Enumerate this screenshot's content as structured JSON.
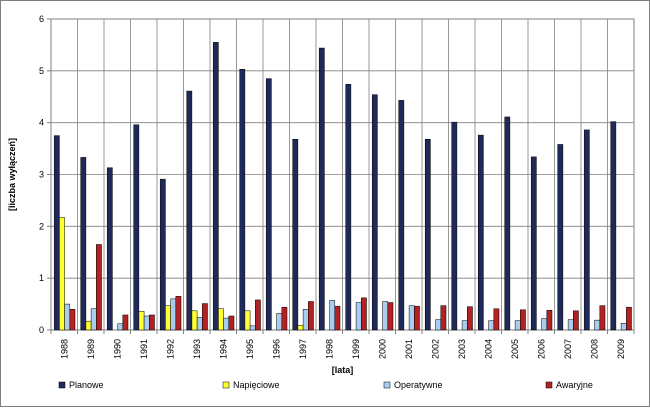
{
  "chart_data": {
    "type": "bar",
    "title": "",
    "xlabel": "[lata]",
    "ylabel": "[liczba wyłączeń]",
    "ylim": [
      0,
      6
    ],
    "yticks": [
      0,
      1,
      2,
      3,
      4,
      5,
      6
    ],
    "grid": true,
    "legend_position": "bottom",
    "categories": [
      "1988",
      "1989",
      "1990",
      "1991",
      "1992",
      "1993",
      "1994",
      "1995",
      "1996",
      "1997",
      "1998",
      "1999",
      "2000",
      "2001",
      "2002",
      "2003",
      "2004",
      "2005",
      "2006",
      "2007",
      "2008",
      "2009"
    ],
    "series": [
      {
        "name": "Planowe",
        "color": "#1f2a5a",
        "values": [
          3.75,
          3.33,
          3.13,
          3.96,
          2.91,
          4.61,
          5.55,
          5.03,
          4.85,
          3.68,
          5.44,
          4.74,
          4.54,
          4.43,
          3.68,
          4.01,
          3.76,
          4.11,
          3.34,
          3.58,
          3.86,
          4.02
        ]
      },
      {
        "name": "Napięciowe",
        "color": "#ffff33",
        "values": [
          2.17,
          0.17,
          0.0,
          0.36,
          0.47,
          0.37,
          0.41,
          0.37,
          0.0,
          0.09,
          0.0,
          0.0,
          0.0,
          0.0,
          0.0,
          0.0,
          0.0,
          0.0,
          0.0,
          0.0,
          0.0,
          0.0
        ]
      },
      {
        "name": "Operatywne",
        "color": "#a9cdf0",
        "values": [
          0.5,
          0.41,
          0.12,
          0.27,
          0.6,
          0.24,
          0.23,
          0.08,
          0.32,
          0.4,
          0.57,
          0.53,
          0.55,
          0.47,
          0.2,
          0.18,
          0.18,
          0.18,
          0.22,
          0.2,
          0.19,
          0.13
        ]
      },
      {
        "name": "Awaryjne",
        "color": "#b22222",
        "values": [
          0.4,
          1.65,
          0.29,
          0.29,
          0.65,
          0.51,
          0.27,
          0.58,
          0.44,
          0.55,
          0.46,
          0.62,
          0.53,
          0.46,
          0.47,
          0.45,
          0.41,
          0.39,
          0.38,
          0.37,
          0.47,
          0.44
        ]
      }
    ]
  }
}
